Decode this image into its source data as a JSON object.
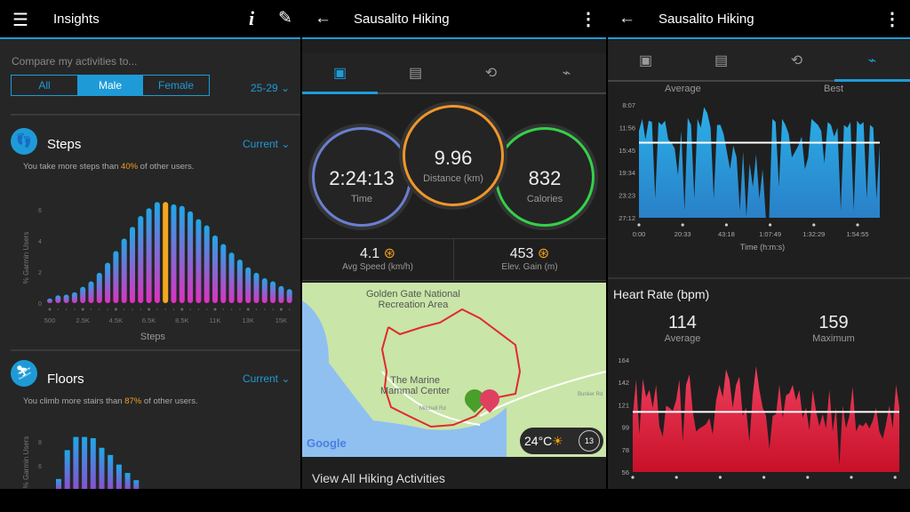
{
  "colors": {
    "accent": "#1e9bd7",
    "highlight": "#f0a020",
    "hr": "#d81e3c",
    "pace": "#2a9fd8"
  },
  "insights": {
    "title": "Insights",
    "menu_icon": "hamburger-icon",
    "info_icon": "info-icon",
    "edit_icon": "pencil-icon",
    "compare_label": "Compare my activities to...",
    "segments": [
      "All",
      "Male",
      "Female"
    ],
    "selected_segment": "Male",
    "age_range": "25-29",
    "steps": {
      "title": "Steps",
      "period": "Current",
      "text_pre": "You take more steps than ",
      "percent": "40%",
      "text_post": " of other users.",
      "icon": "footprints-icon"
    },
    "floors": {
      "title": "Floors",
      "period": "Current",
      "text_pre": "You climb more stairs than ",
      "percent": "87%",
      "text_post": " of other users.",
      "icon": "stairs-icon"
    }
  },
  "activity": {
    "title": "Sausalito Hiking",
    "back_icon": "back-arrow-icon",
    "more_icon": "more-vert-icon",
    "tabs": [
      "summary-icon",
      "details-icon",
      "laps-icon",
      "charts-icon"
    ],
    "time": {
      "value": "2:24:13",
      "label": "Time"
    },
    "distance": {
      "value": "9.96",
      "label": "Distance (km)"
    },
    "calories": {
      "value": "832",
      "label": "Calories"
    },
    "avg_speed": {
      "value": "4.1",
      "label": "Avg Speed (km/h)"
    },
    "elev_gain": {
      "value": "453",
      "label": "Elev. Gain (m)"
    },
    "map": {
      "poi1_line1": "Golden Gate National",
      "poi1_line2": "Recreation Area",
      "poi2_line1": "The Marine",
      "poi2_line2": "Mammal Center",
      "road1": "Mitchell Rd",
      "road2": "Bunker Rd",
      "logo": "Google",
      "weather_temp": "24°C",
      "weather_icon": "sun-icon",
      "wind": "13"
    },
    "view_all": "View All Hiking Activities"
  },
  "charts_screen": {
    "title": "Sausalito Hiking",
    "sub_left": "Average",
    "sub_right": "Best",
    "hr_title": "Heart Rate (bpm)",
    "hr_avg": "114",
    "hr_avg_label": "Average",
    "hr_max": "159",
    "hr_max_label": "Maximum"
  },
  "chart_data": [
    {
      "type": "bar",
      "name": "steps",
      "ylabel": "% Garmin Users",
      "xlabel": "Steps",
      "ylim": [
        0,
        6.5
      ],
      "yticks": [
        "0",
        "2",
        "4",
        "6"
      ],
      "xtick_labels": [
        "500",
        "2.5K",
        "4.5K",
        "6.5K",
        "8.5K",
        "11K",
        "13K",
        "15K"
      ],
      "highlight_index": 14,
      "values": [
        0.3,
        0.5,
        0.55,
        0.7,
        1.05,
        1.4,
        1.95,
        2.6,
        3.35,
        4.15,
        4.9,
        5.6,
        6.1,
        6.5,
        6.5,
        6.35,
        6.25,
        5.9,
        5.4,
        5.0,
        4.35,
        3.8,
        3.25,
        2.8,
        2.3,
        1.95,
        1.6,
        1.4,
        1.1,
        0.9
      ]
    },
    {
      "type": "bar",
      "name": "floors",
      "ylabel": "% Garmin Users",
      "yticks": [
        "6",
        "8"
      ],
      "values": [
        4.9,
        7.3,
        8.4,
        8.4,
        8.3,
        7.5,
        6.9,
        6.1,
        5.4,
        4.8
      ]
    },
    {
      "type": "area",
      "name": "pace",
      "xlabel": "Time (h:m:s)",
      "yticks": [
        "8:07",
        "11:56",
        "15:45",
        "19:34",
        "23:23",
        "27:12"
      ],
      "ylim_min_per_km": [
        8.12,
        27.2
      ],
      "y_inverted": true,
      "xticks": [
        "0:00",
        "20:33",
        "43:18",
        "1:07:49",
        "1:32:29",
        "1:54:55"
      ],
      "average_min_per_km": 14.5,
      "values": [
        12.5,
        10.5,
        14,
        10.8,
        11,
        24,
        11,
        11.5,
        10.8,
        14,
        14.5,
        15.5,
        20,
        12.5,
        26,
        10.3,
        11.5,
        24,
        10.5,
        12,
        8.5,
        9.5,
        12,
        24,
        11.5,
        11.5,
        13,
        16,
        19,
        15,
        17,
        26,
        16,
        27,
        18,
        22,
        16.5,
        24,
        19,
        27.2,
        27.2,
        10.5,
        11,
        22,
        10.5,
        11.5,
        13,
        17,
        16,
        15,
        13.5,
        19,
        17,
        10.5,
        11,
        11.5,
        12.5,
        18,
        11,
        11.5,
        13.5,
        12,
        26,
        11.5,
        12,
        11,
        26,
        10.8,
        11.5,
        11,
        24,
        11.5,
        12,
        24,
        15
      ]
    },
    {
      "type": "area",
      "name": "heart-rate",
      "yticks": [
        "164",
        "142",
        "121",
        "99",
        "78",
        "56"
      ],
      "ylim": [
        56,
        164
      ],
      "average": 114,
      "values": [
        110,
        145,
        92,
        146,
        128,
        135,
        118,
        140,
        100,
        90,
        120,
        118,
        115,
        125,
        145,
        85,
        140,
        150,
        115,
        95,
        98,
        100,
        102,
        108,
        92,
        125,
        140,
        128,
        155,
        145,
        118,
        140,
        148,
        110,
        118,
        85,
        130,
        158,
        135,
        118,
        110,
        78,
        110,
        112,
        140,
        108,
        130,
        132,
        140,
        125,
        135,
        108,
        118,
        96,
        135,
        115,
        100,
        112,
        98,
        135,
        95,
        118,
        62,
        120,
        98,
        110,
        138,
        95,
        102,
        100,
        104,
        98,
        105,
        118,
        95,
        88,
        102,
        120,
        98,
        140,
        118
      ]
    }
  ]
}
